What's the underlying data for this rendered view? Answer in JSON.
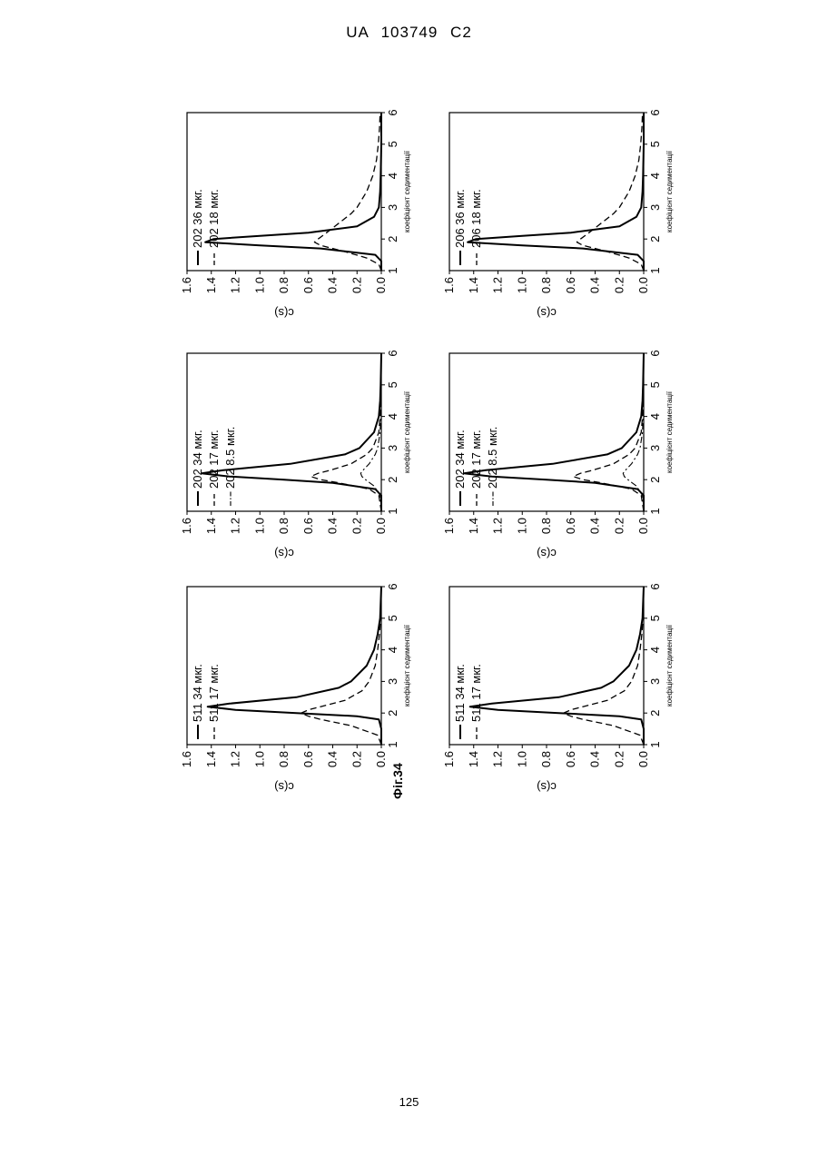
{
  "document": {
    "header": "UA 103749 C2",
    "figure_caption": "Фіг.34",
    "page_number": "125"
  },
  "chart_data": [
    {
      "type": "line",
      "xlabel": "коефіцієнт седиментації",
      "ylabel": "c(s)",
      "xlim": [
        1,
        6
      ],
      "ylim": [
        0,
        1.6
      ],
      "xticks": [
        1,
        2,
        3,
        4,
        5,
        6
      ],
      "yticks": [
        0.0,
        0.2,
        0.4,
        0.6,
        0.8,
        1.0,
        1.2,
        1.4,
        1.6
      ],
      "grid": false,
      "legend_position": "top-left",
      "series": [
        {
          "name": "511 34 мкг.",
          "style": "solid",
          "x": [
            1.0,
            1.5,
            1.8,
            1.9,
            2.0,
            2.1,
            2.2,
            2.3,
            2.5,
            2.8,
            3.0,
            3.5,
            4.0,
            4.5,
            5.0,
            6.0
          ],
          "y": [
            0.0,
            0.0,
            0.02,
            0.2,
            0.7,
            1.2,
            1.43,
            1.25,
            0.7,
            0.35,
            0.25,
            0.12,
            0.06,
            0.03,
            0.01,
            0.0
          ]
        },
        {
          "name": "511 17 мкг.",
          "style": "dashed",
          "x": [
            1.0,
            1.3,
            1.6,
            1.8,
            1.9,
            2.0,
            2.1,
            2.2,
            2.4,
            2.7,
            3.0,
            3.5,
            4.0,
            4.5,
            5.0,
            6.0
          ],
          "y": [
            0.0,
            0.03,
            0.25,
            0.5,
            0.6,
            0.66,
            0.6,
            0.5,
            0.3,
            0.16,
            0.1,
            0.05,
            0.03,
            0.015,
            0.005,
            0.0
          ]
        }
      ]
    },
    {
      "type": "line",
      "xlabel": "коефіцієнт седиментації",
      "ylabel": "c(s)",
      "xlim": [
        1,
        6
      ],
      "ylim": [
        0,
        1.6
      ],
      "xticks": [
        1,
        2,
        3,
        4,
        5,
        6
      ],
      "yticks": [
        0.0,
        0.2,
        0.4,
        0.6,
        0.8,
        1.0,
        1.2,
        1.4,
        1.6
      ],
      "grid": false,
      "legend_position": "top-left",
      "series": [
        {
          "name": "202 34 мкг.",
          "style": "solid",
          "x": [
            1.0,
            1.5,
            1.7,
            1.9,
            2.0,
            2.1,
            2.2,
            2.3,
            2.5,
            2.8,
            3.0,
            3.5,
            4.0,
            4.5,
            5.0,
            6.0
          ],
          "y": [
            0.0,
            0.0,
            0.05,
            0.4,
            0.8,
            1.25,
            1.48,
            1.3,
            0.75,
            0.3,
            0.18,
            0.06,
            0.02,
            0.01,
            0.005,
            0.0
          ]
        },
        {
          "name": "202 17 мкг.",
          "style": "dashed",
          "x": [
            1.0,
            1.5,
            1.7,
            1.9,
            2.0,
            2.1,
            2.2,
            2.3,
            2.5,
            2.8,
            3.0,
            3.5,
            4.0,
            4.5,
            6.0
          ],
          "y": [
            0.0,
            0.02,
            0.1,
            0.35,
            0.5,
            0.58,
            0.52,
            0.42,
            0.25,
            0.12,
            0.07,
            0.02,
            0.01,
            0.005,
            0.0
          ]
        },
        {
          "name": "202 8.5 мкг.",
          "style": "dashdot",
          "x": [
            1.0,
            1.5,
            1.8,
            2.0,
            2.1,
            2.2,
            2.3,
            2.5,
            2.8,
            3.0,
            3.5,
            4.0,
            6.0
          ],
          "y": [
            0.0,
            0.01,
            0.06,
            0.13,
            0.16,
            0.17,
            0.15,
            0.1,
            0.05,
            0.03,
            0.01,
            0.005,
            0.0
          ]
        }
      ]
    },
    {
      "type": "line",
      "xlabel": "коефіцієнт седиментації",
      "ylabel": "c(s)",
      "xlim": [
        1,
        6
      ],
      "ylim": [
        0,
        1.6
      ],
      "xticks": [
        1,
        2,
        3,
        4,
        5,
        6
      ],
      "yticks": [
        0.0,
        0.2,
        0.4,
        0.6,
        0.8,
        1.0,
        1.2,
        1.4,
        1.6
      ],
      "grid": false,
      "legend_position": "top-left",
      "series": [
        {
          "name": "202 36 мкг.",
          "style": "solid",
          "x": [
            1.0,
            1.3,
            1.5,
            1.7,
            1.8,
            1.9,
            2.0,
            2.1,
            2.2,
            2.4,
            2.7,
            3.0,
            3.5,
            4.0,
            5.0,
            6.0
          ],
          "y": [
            0.0,
            0.0,
            0.05,
            0.5,
            1.0,
            1.45,
            1.38,
            1.0,
            0.6,
            0.2,
            0.06,
            0.02,
            0.01,
            0.005,
            0.0,
            0.0
          ]
        },
        {
          "name": "202 18 мкг.",
          "style": "dashed",
          "x": [
            1.0,
            1.2,
            1.4,
            1.6,
            1.8,
            1.9,
            2.0,
            2.2,
            2.5,
            2.8,
            3.0,
            3.5,
            4.0,
            4.5,
            5.0,
            5.5,
            6.0
          ],
          "y": [
            0.0,
            0.02,
            0.12,
            0.3,
            0.5,
            0.55,
            0.52,
            0.45,
            0.35,
            0.25,
            0.2,
            0.12,
            0.07,
            0.04,
            0.025,
            0.015,
            0.01
          ]
        }
      ]
    },
    {
      "type": "line",
      "xlabel": "коефіцієнт седиментації",
      "ylabel": "c(s)",
      "xlim": [
        1,
        6
      ],
      "ylim": [
        0,
        1.6
      ],
      "xticks": [
        1,
        2,
        3,
        4,
        5,
        6
      ],
      "yticks": [
        0.0,
        0.2,
        0.4,
        0.6,
        0.8,
        1.0,
        1.2,
        1.4,
        1.6
      ],
      "grid": false,
      "legend_position": "top-left",
      "series": [
        {
          "name": "511 34 мкг.",
          "style": "solid",
          "x": [
            1.0,
            1.5,
            1.8,
            1.9,
            2.0,
            2.1,
            2.2,
            2.3,
            2.5,
            2.8,
            3.0,
            3.5,
            4.0,
            4.5,
            5.0,
            6.0
          ],
          "y": [
            0.0,
            0.0,
            0.02,
            0.2,
            0.7,
            1.2,
            1.43,
            1.25,
            0.7,
            0.35,
            0.25,
            0.12,
            0.06,
            0.03,
            0.01,
            0.0
          ]
        },
        {
          "name": "511 17 мкг.",
          "style": "dashed",
          "x": [
            1.0,
            1.3,
            1.6,
            1.8,
            1.9,
            2.0,
            2.1,
            2.2,
            2.4,
            2.7,
            3.0,
            3.5,
            4.0,
            4.5,
            5.0,
            6.0
          ],
          "y": [
            0.0,
            0.03,
            0.25,
            0.5,
            0.6,
            0.66,
            0.6,
            0.5,
            0.3,
            0.16,
            0.1,
            0.05,
            0.03,
            0.015,
            0.005,
            0.0
          ]
        }
      ]
    },
    {
      "type": "line",
      "xlabel": "коефіцієнт седиментації",
      "ylabel": "c(s)",
      "xlim": [
        1,
        6
      ],
      "ylim": [
        0,
        1.6
      ],
      "xticks": [
        1,
        2,
        3,
        4,
        5,
        6
      ],
      "yticks": [
        0.0,
        0.2,
        0.4,
        0.6,
        0.8,
        1.0,
        1.2,
        1.4,
        1.6
      ],
      "grid": false,
      "legend_position": "top-left",
      "series": [
        {
          "name": "202 34 мкг.",
          "style": "solid",
          "x": [
            1.0,
            1.5,
            1.7,
            1.9,
            2.0,
            2.1,
            2.2,
            2.3,
            2.5,
            2.8,
            3.0,
            3.5,
            4.0,
            4.5,
            5.0,
            6.0
          ],
          "y": [
            0.0,
            0.0,
            0.05,
            0.4,
            0.8,
            1.25,
            1.48,
            1.3,
            0.75,
            0.3,
            0.18,
            0.06,
            0.02,
            0.01,
            0.005,
            0.0
          ]
        },
        {
          "name": "202 17 мкг.",
          "style": "dashed",
          "x": [
            1.0,
            1.5,
            1.7,
            1.9,
            2.0,
            2.1,
            2.2,
            2.3,
            2.5,
            2.8,
            3.0,
            3.5,
            4.0,
            4.5,
            6.0
          ],
          "y": [
            0.0,
            0.02,
            0.1,
            0.35,
            0.5,
            0.58,
            0.52,
            0.42,
            0.25,
            0.12,
            0.07,
            0.02,
            0.01,
            0.005,
            0.0
          ]
        },
        {
          "name": "202 8.5 мкг.",
          "style": "dashdot",
          "x": [
            1.0,
            1.5,
            1.8,
            2.0,
            2.1,
            2.2,
            2.3,
            2.5,
            2.8,
            3.0,
            3.5,
            4.0,
            6.0
          ],
          "y": [
            0.0,
            0.01,
            0.06,
            0.13,
            0.16,
            0.17,
            0.15,
            0.1,
            0.05,
            0.03,
            0.01,
            0.005,
            0.0
          ]
        }
      ]
    },
    {
      "type": "line",
      "xlabel": "коефіцієнт седиментації",
      "ylabel": "c(s)",
      "xlim": [
        1,
        6
      ],
      "ylim": [
        0,
        1.6
      ],
      "xticks": [
        1,
        2,
        3,
        4,
        5,
        6
      ],
      "yticks": [
        0.0,
        0.2,
        0.4,
        0.6,
        0.8,
        1.0,
        1.2,
        1.4,
        1.6
      ],
      "grid": false,
      "legend_position": "top-left",
      "series": [
        {
          "name": "206 36 мкг.",
          "style": "solid",
          "x": [
            1.0,
            1.3,
            1.5,
            1.7,
            1.8,
            1.9,
            2.0,
            2.1,
            2.2,
            2.4,
            2.7,
            3.0,
            3.5,
            4.0,
            5.0,
            6.0
          ],
          "y": [
            0.0,
            0.0,
            0.05,
            0.5,
            1.0,
            1.45,
            1.38,
            1.0,
            0.6,
            0.2,
            0.06,
            0.02,
            0.01,
            0.005,
            0.0,
            0.0
          ]
        },
        {
          "name": "206 18 мкг.",
          "style": "dashed",
          "x": [
            1.0,
            1.2,
            1.4,
            1.6,
            1.8,
            1.9,
            2.0,
            2.2,
            2.5,
            2.8,
            3.0,
            3.5,
            4.0,
            4.5,
            5.0,
            5.5,
            6.0
          ],
          "y": [
            0.0,
            0.02,
            0.12,
            0.3,
            0.5,
            0.55,
            0.52,
            0.45,
            0.35,
            0.25,
            0.2,
            0.12,
            0.07,
            0.04,
            0.025,
            0.015,
            0.01
          ]
        }
      ]
    }
  ]
}
